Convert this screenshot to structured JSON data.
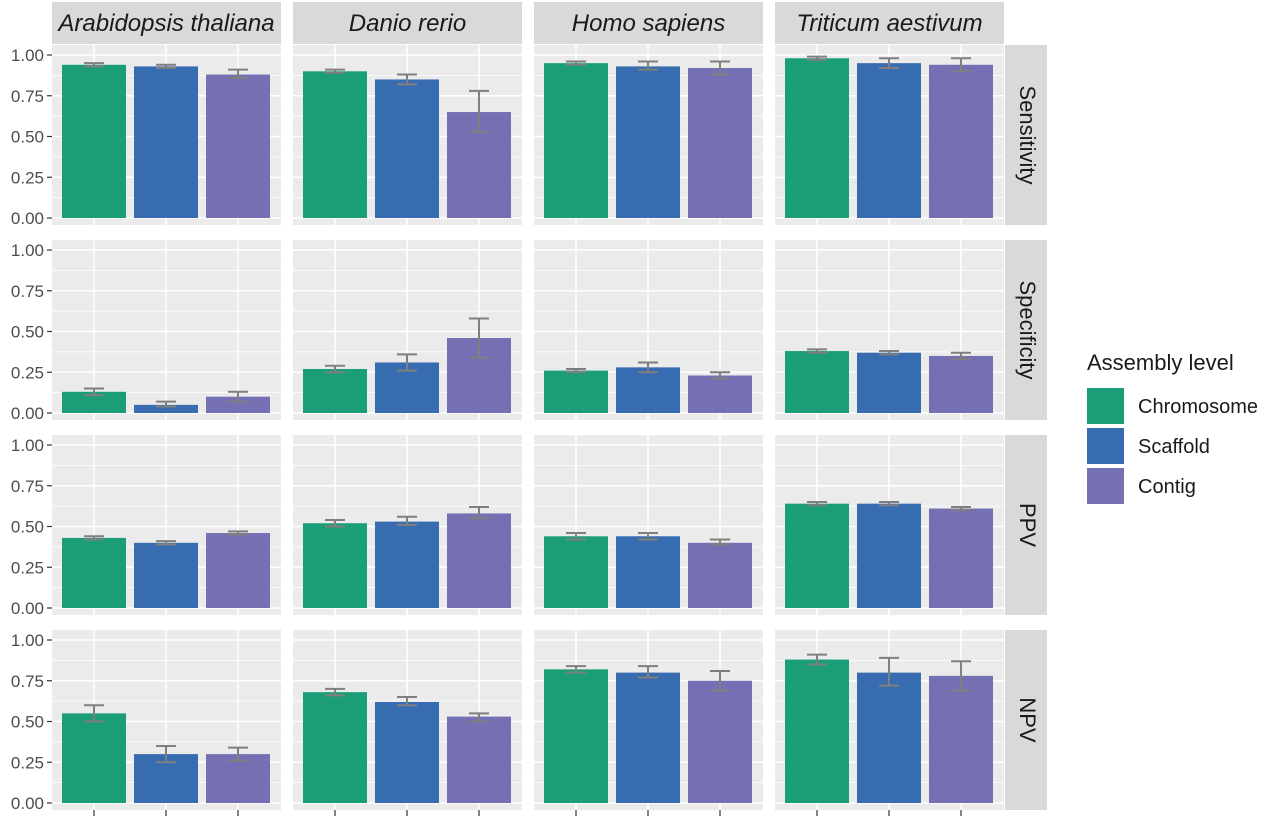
{
  "chart_data": {
    "type": "bar",
    "facet_columns": [
      "Arabidopsis thaliana",
      "Danio rerio",
      "Homo sapiens",
      "Triticum aestivum"
    ],
    "facet_rows": [
      "Sensitivity",
      "Specificity",
      "PPV",
      "NPV"
    ],
    "categories": [
      "Chromosome",
      "Scaffold",
      "Contig"
    ],
    "ylim": [
      0,
      1
    ],
    "yticks": [
      "0.00",
      "0.25",
      "0.50",
      "0.75",
      "1.00"
    ],
    "grid": true,
    "legend": {
      "title": "Assembly level",
      "position": "right",
      "entries": [
        "Chromosome",
        "Scaffold",
        "Contig"
      ]
    },
    "colors": {
      "Chromosome": "#1b9e77",
      "Scaffold": "#386cb0",
      "Contig": "#7570b3",
      "panel_bg": "#ebebeb",
      "strip_bg": "#d9d9d9",
      "grid": "#ffffff",
      "errorbar": "#7f7f7f"
    },
    "panels": [
      {
        "row": "Sensitivity",
        "col": "Arabidopsis thaliana",
        "values": [
          0.94,
          0.93,
          0.88
        ],
        "err": [
          [
            0.93,
            0.95
          ],
          [
            0.92,
            0.94
          ],
          [
            0.86,
            0.91
          ]
        ]
      },
      {
        "row": "Sensitivity",
        "col": "Danio rerio",
        "values": [
          0.9,
          0.85,
          0.65
        ],
        "err": [
          [
            0.89,
            0.91
          ],
          [
            0.82,
            0.88
          ],
          [
            0.53,
            0.78
          ]
        ]
      },
      {
        "row": "Sensitivity",
        "col": "Homo sapiens",
        "values": [
          0.95,
          0.93,
          0.92
        ],
        "err": [
          [
            0.94,
            0.96
          ],
          [
            0.91,
            0.96
          ],
          [
            0.88,
            0.96
          ]
        ]
      },
      {
        "row": "Sensitivity",
        "col": "Triticum aestivum",
        "values": [
          0.98,
          0.95,
          0.94
        ],
        "err": [
          [
            0.97,
            0.99
          ],
          [
            0.92,
            0.98
          ],
          [
            0.9,
            0.98
          ]
        ]
      },
      {
        "row": "Specificity",
        "col": "Arabidopsis thaliana",
        "values": [
          0.13,
          0.05,
          0.1
        ],
        "err": [
          [
            0.11,
            0.15
          ],
          [
            0.04,
            0.07
          ],
          [
            0.07,
            0.13
          ]
        ]
      },
      {
        "row": "Specificity",
        "col": "Danio rerio",
        "values": [
          0.27,
          0.31,
          0.46
        ],
        "err": [
          [
            0.25,
            0.29
          ],
          [
            0.26,
            0.36
          ],
          [
            0.34,
            0.58
          ]
        ]
      },
      {
        "row": "Specificity",
        "col": "Homo sapiens",
        "values": [
          0.26,
          0.28,
          0.23
        ],
        "err": [
          [
            0.25,
            0.27
          ],
          [
            0.25,
            0.31
          ],
          [
            0.21,
            0.25
          ]
        ]
      },
      {
        "row": "Specificity",
        "col": "Triticum aestivum",
        "values": [
          0.38,
          0.37,
          0.35
        ],
        "err": [
          [
            0.37,
            0.39
          ],
          [
            0.36,
            0.38
          ],
          [
            0.33,
            0.37
          ]
        ]
      },
      {
        "row": "PPV",
        "col": "Arabidopsis thaliana",
        "values": [
          0.43,
          0.4,
          0.46
        ],
        "err": [
          [
            0.42,
            0.44
          ],
          [
            0.39,
            0.41
          ],
          [
            0.45,
            0.47
          ]
        ]
      },
      {
        "row": "PPV",
        "col": "Danio rerio",
        "values": [
          0.52,
          0.53,
          0.58
        ],
        "err": [
          [
            0.5,
            0.54
          ],
          [
            0.51,
            0.56
          ],
          [
            0.55,
            0.62
          ]
        ]
      },
      {
        "row": "PPV",
        "col": "Homo sapiens",
        "values": [
          0.44,
          0.44,
          0.4
        ],
        "err": [
          [
            0.42,
            0.46
          ],
          [
            0.42,
            0.46
          ],
          [
            0.39,
            0.42
          ]
        ]
      },
      {
        "row": "PPV",
        "col": "Triticum aestivum",
        "values": [
          0.64,
          0.64,
          0.61
        ],
        "err": [
          [
            0.63,
            0.65
          ],
          [
            0.63,
            0.65
          ],
          [
            0.6,
            0.62
          ]
        ]
      },
      {
        "row": "NPV",
        "col": "Arabidopsis thaliana",
        "values": [
          0.55,
          0.3,
          0.3
        ],
        "err": [
          [
            0.5,
            0.6
          ],
          [
            0.25,
            0.35
          ],
          [
            0.26,
            0.34
          ]
        ]
      },
      {
        "row": "NPV",
        "col": "Danio rerio",
        "values": [
          0.68,
          0.62,
          0.53
        ],
        "err": [
          [
            0.66,
            0.7
          ],
          [
            0.6,
            0.65
          ],
          [
            0.5,
            0.55
          ]
        ]
      },
      {
        "row": "NPV",
        "col": "Homo sapiens",
        "values": [
          0.82,
          0.8,
          0.75
        ],
        "err": [
          [
            0.8,
            0.84
          ],
          [
            0.77,
            0.84
          ],
          [
            0.69,
            0.81
          ]
        ]
      },
      {
        "row": "NPV",
        "col": "Triticum aestivum",
        "values": [
          0.88,
          0.8,
          0.78
        ],
        "err": [
          [
            0.85,
            0.91
          ],
          [
            0.72,
            0.89
          ],
          [
            0.69,
            0.87
          ]
        ]
      }
    ]
  }
}
